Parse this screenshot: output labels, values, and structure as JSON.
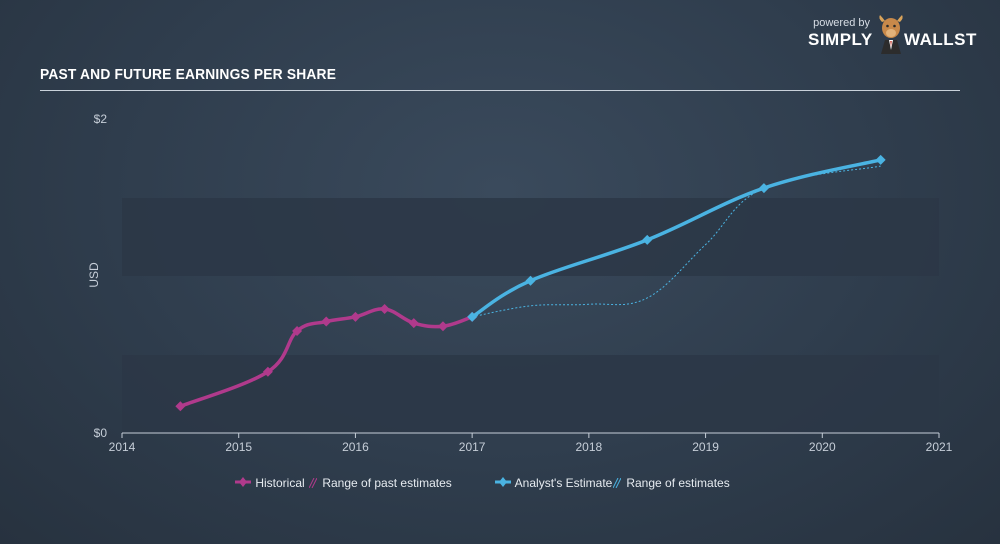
{
  "header": {
    "title": "PAST AND FUTURE EARNINGS PER SHARE"
  },
  "brand": {
    "powered_by": "powered by",
    "name_left": "SIMPLY",
    "name_right": "WALLST"
  },
  "colors": {
    "historical": "#b03a8c",
    "estimate": "#4ab3e2",
    "band": "#2b3746"
  },
  "chart_data": {
    "type": "line",
    "title": "PAST AND FUTURE EARNINGS PER SHARE",
    "xlabel": "",
    "ylabel": "USD",
    "xlim": [
      2014,
      2021
    ],
    "ylim": [
      0,
      2
    ],
    "y_tick_labels": [
      {
        "value": 2,
        "label": "$2"
      },
      {
        "value": 0,
        "label": "$0"
      }
    ],
    "x_ticks": [
      2014,
      2015,
      2016,
      2017,
      2018,
      2019,
      2020,
      2021
    ],
    "grid": false,
    "legend_position": "bottom",
    "series": [
      {
        "name": "Historical",
        "color": "#b03a8c",
        "x": [
          2014.5,
          2015.25,
          2015.5,
          2015.75,
          2016.0,
          2016.25,
          2016.5,
          2016.75,
          2017.0
        ],
        "y": [
          0.17,
          0.39,
          0.65,
          0.71,
          0.74,
          0.79,
          0.7,
          0.68,
          0.74
        ]
      },
      {
        "name": "Analyst's Estimate",
        "color": "#4ab3e2",
        "x": [
          2017.0,
          2017.5,
          2018.5,
          2019.5,
          2020.5
        ],
        "y": [
          0.74,
          0.97,
          1.23,
          1.56,
          1.74
        ]
      },
      {
        "name": "Range of estimates",
        "color": "#4ab3e2",
        "style": "dotted",
        "x": [
          2017.0,
          2017.5,
          2018.0,
          2018.5,
          2019.0,
          2019.5,
          2020.5
        ],
        "y": [
          0.74,
          0.81,
          0.82,
          0.86,
          1.2,
          1.56,
          1.7
        ]
      }
    ],
    "legend": [
      "Historical",
      "Range of past estimates",
      "Analyst's Estimate",
      "Range of estimates"
    ]
  }
}
